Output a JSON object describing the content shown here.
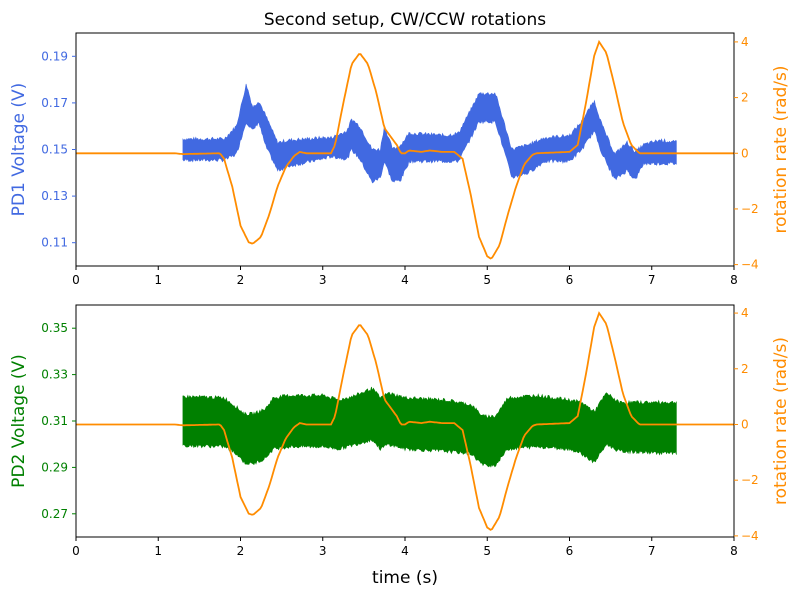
{
  "chart_data": {
    "title": "Second setup, CW/CCW rotations",
    "xlabel": "time (s)",
    "xlim": [
      0,
      8
    ],
    "xticks": [
      0,
      1,
      2,
      3,
      4,
      5,
      6,
      7,
      8
    ],
    "colors": {
      "pd1": "#4169E1",
      "pd2": "#008000",
      "rotation": "#FF8C00"
    },
    "rotation_rate": {
      "t": [
        0,
        1.2,
        1.3,
        1.75,
        1.8,
        1.9,
        2.0,
        2.1,
        2.15,
        2.25,
        2.35,
        2.45,
        2.55,
        2.65,
        2.72,
        2.8,
        3.1,
        3.15,
        3.25,
        3.35,
        3.45,
        3.55,
        3.65,
        3.75,
        3.85,
        3.9,
        3.95,
        4.0,
        4.05,
        4.2,
        4.3,
        4.45,
        4.6,
        4.7,
        4.8,
        4.9,
        5.0,
        5.05,
        5.15,
        5.25,
        5.35,
        5.45,
        5.55,
        5.6,
        6.0,
        6.1,
        6.2,
        6.3,
        6.36,
        6.45,
        6.55,
        6.65,
        6.75,
        6.85,
        8
      ],
      "value": [
        0,
        0,
        -0.03,
        0,
        -0.2,
        -1.2,
        -2.6,
        -3.2,
        -3.25,
        -3.0,
        -2.2,
        -1.2,
        -0.5,
        -0.1,
        0.05,
        0,
        0,
        0.3,
        1.8,
        3.2,
        3.6,
        3.2,
        2.2,
        0.9,
        0.5,
        0.3,
        0,
        0,
        0.1,
        0.05,
        0.1,
        0.05,
        0.05,
        -0.2,
        -1.5,
        -3.0,
        -3.7,
        -3.8,
        -3.3,
        -2.2,
        -1.2,
        -0.4,
        -0.05,
        0,
        0.05,
        0.3,
        1.8,
        3.5,
        4.0,
        3.6,
        2.4,
        1.1,
        0.3,
        0,
        0
      ]
    },
    "panels": [
      {
        "type": "area",
        "ylabel": "PD1 Voltage (V)",
        "ylim": [
          0.1,
          0.2
        ],
        "yticks": [
          "0.11",
          "0.13",
          "0.15",
          "0.17",
          "0.19"
        ],
        "ylabel_right": "rotation rate (rad/s)",
        "ylim_right": [
          -4.05,
          4.32
        ],
        "yticks_right": [
          "−4",
          "−2",
          "0",
          "2",
          "4"
        ],
        "signal_envelope": {
          "t": [
            1.3,
            1.8,
            1.95,
            2.07,
            2.15,
            2.22,
            2.3,
            2.45,
            2.6,
            3.0,
            3.1,
            3.3,
            3.35,
            3.45,
            3.6,
            3.7,
            3.75,
            3.85,
            3.95,
            4.05,
            4.5,
            4.65,
            4.8,
            4.9,
            5.1,
            5.2,
            5.3,
            5.5,
            5.7,
            6.0,
            6.15,
            6.3,
            6.4,
            6.55,
            6.7,
            6.8,
            6.9,
            7.1,
            7.3
          ],
          "low": [
            0.1455,
            0.1455,
            0.148,
            0.162,
            0.158,
            0.162,
            0.152,
            0.141,
            0.143,
            0.146,
            0.147,
            0.146,
            0.15,
            0.146,
            0.136,
            0.138,
            0.145,
            0.136,
            0.137,
            0.145,
            0.145,
            0.145,
            0.155,
            0.162,
            0.162,
            0.15,
            0.138,
            0.14,
            0.145,
            0.145,
            0.15,
            0.158,
            0.148,
            0.137,
            0.141,
            0.137,
            0.144,
            0.144,
            0.144
          ],
          "high": [
            0.1545,
            0.1545,
            0.16,
            0.178,
            0.168,
            0.171,
            0.165,
            0.153,
            0.154,
            0.155,
            0.155,
            0.158,
            0.163,
            0.16,
            0.15,
            0.15,
            0.16,
            0.15,
            0.152,
            0.157,
            0.156,
            0.157,
            0.167,
            0.174,
            0.174,
            0.162,
            0.15,
            0.152,
            0.155,
            0.156,
            0.162,
            0.171,
            0.16,
            0.148,
            0.153,
            0.149,
            0.152,
            0.154,
            0.153
          ]
        }
      },
      {
        "type": "area",
        "ylabel": "PD2 Voltage (V)",
        "ylim": [
          0.26,
          0.36
        ],
        "yticks": [
          "0.27",
          "0.29",
          "0.31",
          "0.33",
          "0.35"
        ],
        "ylabel_right": "rotation rate (rad/s)",
        "ylim_right": [
          -4.04,
          4.29
        ],
        "yticks_right": [
          "−4",
          "−2",
          "0",
          "2",
          "4"
        ],
        "signal_envelope": {
          "t": [
            1.3,
            1.8,
            1.95,
            2.05,
            2.15,
            2.3,
            2.4,
            2.6,
            3.0,
            3.2,
            3.4,
            3.6,
            3.7,
            3.8,
            4.0,
            4.5,
            4.8,
            4.95,
            5.1,
            5.25,
            5.6,
            6.0,
            6.15,
            6.3,
            6.45,
            6.6,
            7.3
          ],
          "low": [
            0.2995,
            0.299,
            0.296,
            0.292,
            0.2915,
            0.294,
            0.298,
            0.299,
            0.299,
            0.298,
            0.3,
            0.302,
            0.298,
            0.3,
            0.298,
            0.297,
            0.296,
            0.291,
            0.291,
            0.298,
            0.299,
            0.298,
            0.296,
            0.292,
            0.3,
            0.297,
            0.296
          ],
          "high": [
            0.3205,
            0.32,
            0.316,
            0.313,
            0.313,
            0.315,
            0.32,
            0.321,
            0.321,
            0.319,
            0.321,
            0.324,
            0.32,
            0.322,
            0.32,
            0.319,
            0.317,
            0.312,
            0.312,
            0.32,
            0.321,
            0.319,
            0.318,
            0.314,
            0.322,
            0.318,
            0.318
          ]
        }
      }
    ]
  }
}
